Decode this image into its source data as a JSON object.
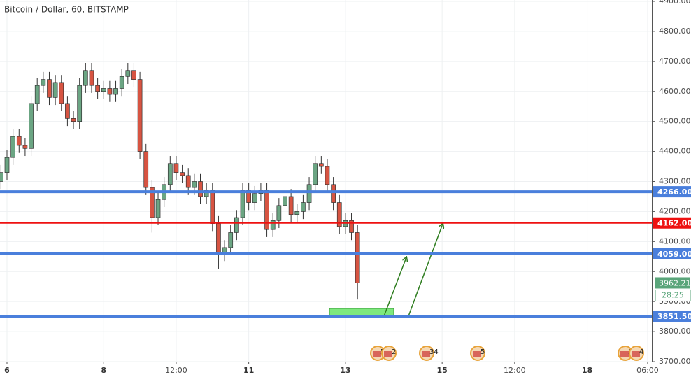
{
  "chart_data": {
    "type": "candlestick",
    "title": "Bitcoin / Dollar, 60, BITSTAMP",
    "x": [
      -3,
      0,
      3,
      6,
      9,
      12,
      15,
      18,
      21,
      24,
      27,
      30,
      33,
      36,
      39,
      42,
      45,
      48,
      51,
      54,
      57,
      60,
      63,
      66,
      69,
      72,
      75,
      78,
      81,
      84,
      87,
      90,
      93,
      96,
      99,
      102,
      105,
      108,
      111,
      114,
      117,
      120,
      123,
      126,
      129,
      132,
      135,
      138,
      141,
      144,
      147,
      150,
      153,
      156,
      159,
      162,
      165,
      168,
      171,
      174
    ],
    "open": [
      4300,
      4330,
      4380,
      4450,
      4420,
      4410,
      4560,
      4620,
      4640,
      4580,
      4630,
      4560,
      4510,
      4500,
      4620,
      4670,
      4620,
      4600,
      4610,
      4590,
      4610,
      4650,
      4670,
      4640,
      4400,
      4280,
      4180,
      4240,
      4290,
      4360,
      4330,
      4320,
      4280,
      4300,
      4250,
      4270,
      4160,
      4060,
      4080,
      4130,
      4180,
      4270,
      4230,
      4260,
      4270,
      4140,
      4170,
      4220,
      4250,
      4190,
      4200,
      4230,
      4290,
      4360,
      4350,
      4290,
      4230,
      4150,
      4170,
      4130
    ],
    "high": [
      4355,
      4405,
      4475,
      4475,
      4445,
      4585,
      4645,
      4665,
      4665,
      4655,
      4655,
      4585,
      4535,
      4645,
      4695,
      4695,
      4645,
      4635,
      4635,
      4635,
      4675,
      4695,
      4695,
      4665,
      4425,
      4305,
      4265,
      4315,
      4385,
      4385,
      4355,
      4345,
      4325,
      4325,
      4295,
      4295,
      4185,
      4105,
      4155,
      4205,
      4295,
      4295,
      4285,
      4295,
      4295,
      4195,
      4245,
      4275,
      4275,
      4225,
      4255,
      4315,
      4385,
      4385,
      4375,
      4315,
      4255,
      4195,
      4195,
      4155
    ],
    "low": [
      4275,
      4305,
      4355,
      4395,
      4385,
      4385,
      4535,
      4595,
      4555,
      4555,
      4535,
      4485,
      4475,
      4475,
      4595,
      4595,
      4575,
      4575,
      4565,
      4565,
      4585,
      4625,
      4615,
      4375,
      4255,
      4130,
      4155,
      4215,
      4265,
      4305,
      4295,
      4255,
      4255,
      4225,
      4225,
      4135,
      4010,
      4035,
      4055,
      4105,
      4155,
      4205,
      4205,
      4235,
      4115,
      4115,
      4145,
      4195,
      4165,
      4165,
      4175,
      4205,
      4265,
      4325,
      4265,
      4205,
      4125,
      4125,
      4105,
      3907
    ],
    "close": [
      4330,
      4380,
      4450,
      4420,
      4410,
      4560,
      4620,
      4640,
      4580,
      4630,
      4560,
      4510,
      4500,
      4620,
      4670,
      4620,
      4600,
      4610,
      4590,
      4610,
      4650,
      4670,
      4640,
      4400,
      4280,
      4180,
      4240,
      4290,
      4360,
      4330,
      4320,
      4280,
      4300,
      4250,
      4270,
      4160,
      4060,
      4080,
      4130,
      4180,
      4270,
      4230,
      4260,
      4270,
      4140,
      4170,
      4220,
      4250,
      4190,
      4200,
      4230,
      4290,
      4360,
      4350,
      4290,
      4230,
      4150,
      4170,
      4130,
      3962.21
    ],
    "up_color": "#6ba583",
    "down_color": "#d75442",
    "xlim": [
      -3.47,
      320.1
    ],
    "xticks": [
      {
        "value": 0,
        "label": "6"
      },
      {
        "value": 48,
        "label": "8"
      },
      {
        "value": 84,
        "label": "12:00"
      },
      {
        "value": 120,
        "label": "11"
      },
      {
        "value": 168,
        "label": "13"
      },
      {
        "value": 216,
        "label": "15"
      },
      {
        "value": 252,
        "label": "12:00"
      },
      {
        "value": 288,
        "label": "18"
      },
      {
        "value": 318,
        "label": "06:00"
      }
    ],
    "ylim": [
      3700,
      4904.7
    ],
    "yticks": [
      {
        "value": 3700,
        "label": "3700.00"
      },
      {
        "value": 3800,
        "label": "3800.00"
      },
      {
        "value": 3900,
        "label": "3900.00"
      },
      {
        "value": 4000,
        "label": "4000.00"
      },
      {
        "value": 4100,
        "label": "4100.00"
      },
      {
        "value": 4200,
        "label": "4200.00"
      },
      {
        "value": 4300,
        "label": "4300.00"
      },
      {
        "value": 4400,
        "label": "4400.00"
      },
      {
        "value": 4500,
        "label": "4500.00"
      },
      {
        "value": 4600,
        "label": "4600.00"
      },
      {
        "value": 4700,
        "label": "4700.00"
      },
      {
        "value": 4800,
        "label": "4800.00"
      },
      {
        "value": 4900,
        "label": "4900.00"
      }
    ],
    "grid": true,
    "hlines": [
      {
        "value": 4266,
        "label": "4266.00",
        "color": "#4a7fdc"
      },
      {
        "value": 4162,
        "label": "4162.00",
        "color": "#ee1111"
      },
      {
        "value": 4059,
        "label": "4059.00",
        "color": "#4a7fdc"
      },
      {
        "value": 3851.5,
        "label": "3851.50",
        "color": "#4a7fdc"
      }
    ],
    "last_price": 3962.21,
    "last_price_color": "#5aa57a",
    "countdown": "28:25",
    "event_labels": [
      "5",
      "2",
      "34",
      "5",
      "3",
      "4"
    ]
  }
}
